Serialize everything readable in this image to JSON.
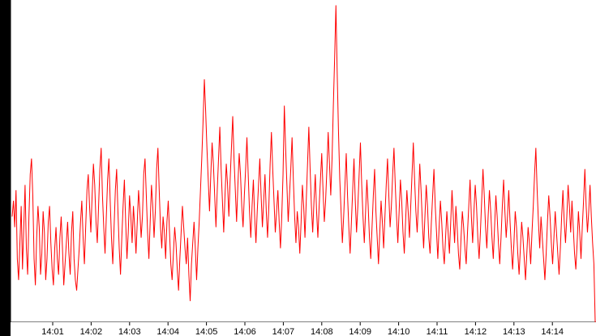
{
  "chart_data": {
    "type": "line",
    "title": "",
    "xlabel": "",
    "ylabel": "",
    "background": "#000000",
    "plot_background": "#ffffff",
    "axis_color": "#000000",
    "line_color": "#ff0000",
    "grid": false,
    "legend": "none",
    "ylim": [
      0,
      61
    ],
    "y_ticks": [
      "0",
      "6",
      "12",
      "18",
      "24",
      "30",
      "36",
      "42",
      "48",
      "54",
      "61"
    ],
    "x_tick_labels": [
      "14:01",
      "14:02",
      "14:03",
      "14:04",
      "14:05",
      "14:06",
      "14:07",
      "14:08",
      "14:09",
      "14:10",
      "14:11",
      "14:12",
      "14:13",
      "14:14"
    ],
    "series": [
      {
        "values": [
          20,
          23,
          18,
          25,
          12,
          8,
          15,
          22,
          10,
          18,
          26,
          14,
          9,
          20,
          28,
          31,
          24,
          12,
          7,
          16,
          22,
          18,
          9,
          13,
          21,
          17,
          8,
          12,
          19,
          22,
          15,
          10,
          7,
          14,
          18,
          12,
          9,
          16,
          20,
          14,
          7,
          11,
          15,
          19,
          13,
          9,
          17,
          21,
          12,
          8,
          6,
          10,
          14,
          19,
          23,
          16,
          11,
          18,
          25,
          28,
          22,
          17,
          24,
          30,
          26,
          19,
          15,
          22,
          29,
          33,
          24,
          18,
          13,
          20,
          27,
          31,
          23,
          16,
          11,
          18,
          25,
          29,
          21,
          14,
          9,
          16,
          22,
          27,
          19,
          12,
          17,
          24,
          20,
          15,
          22,
          18,
          13,
          19,
          25,
          21,
          16,
          20,
          28,
          31,
          24,
          17,
          12,
          19,
          26,
          22,
          16,
          21,
          29,
          33,
          25,
          18,
          14,
          20,
          17,
          12,
          19,
          23,
          17,
          11,
          8,
          13,
          18,
          15,
          10,
          6,
          12,
          17,
          22,
          18,
          14,
          11,
          16,
          9,
          4,
          11,
          15,
          19,
          14,
          8,
          14,
          19,
          25,
          31,
          38,
          46,
          40,
          33,
          27,
          21,
          28,
          34,
          30,
          24,
          18,
          25,
          31,
          37,
          29,
          23,
          17,
          24,
          30,
          26,
          20,
          27,
          33,
          39,
          31,
          25,
          19,
          26,
          32,
          28,
          22,
          18,
          24,
          29,
          35,
          28,
          21,
          16,
          22,
          27,
          20,
          15,
          21,
          26,
          31,
          24,
          18,
          23,
          28,
          21,
          16,
          22,
          30,
          36,
          29,
          23,
          17,
          21,
          25,
          19,
          14,
          20,
          28,
          41,
          33,
          26,
          19,
          24,
          29,
          35,
          27,
          20,
          15,
          21,
          18,
          13,
          19,
          26,
          22,
          16,
          23,
          30,
          37,
          29,
          22,
          17,
          23,
          28,
          21,
          16,
          22,
          27,
          32,
          25,
          19,
          23,
          29,
          36,
          30,
          24,
          31,
          41,
          50,
          60,
          47,
          36,
          27,
          21,
          15,
          20,
          26,
          32,
          24,
          18,
          13,
          19,
          25,
          31,
          23,
          17,
          22,
          28,
          34,
          26,
          20,
          15,
          21,
          27,
          22,
          16,
          12,
          18,
          24,
          29,
          21,
          16,
          11,
          17,
          23,
          19,
          14,
          20,
          26,
          31,
          24,
          18,
          22,
          28,
          33,
          26,
          20,
          15,
          21,
          27,
          23,
          17,
          13,
          19,
          25,
          21,
          16,
          22,
          28,
          34,
          27,
          21,
          17,
          23,
          30,
          25,
          19,
          14,
          20,
          26,
          22,
          16,
          13,
          19,
          24,
          29,
          22,
          17,
          12,
          18,
          23,
          19,
          14,
          11,
          16,
          21,
          17,
          13,
          19,
          25,
          20,
          15,
          22,
          18,
          13,
          10,
          16,
          21,
          18,
          14,
          11,
          17,
          22,
          27,
          20,
          15,
          21,
          26,
          22,
          16,
          12,
          17,
          23,
          29,
          24,
          18,
          14,
          20,
          25,
          21,
          16,
          12,
          18,
          24,
          20,
          15,
          11,
          16,
          22,
          27,
          21,
          16,
          20,
          25,
          19,
          14,
          10,
          15,
          21,
          18,
          13,
          9,
          14,
          19,
          16,
          12,
          8,
          13,
          18,
          15,
          11,
          17,
          22,
          28,
          33,
          25,
          19,
          14,
          20,
          16,
          12,
          8,
          13,
          19,
          24,
          20,
          15,
          11,
          16,
          21,
          17,
          13,
          9,
          14,
          20,
          25,
          19,
          15,
          20,
          26,
          22,
          17,
          23,
          18,
          13,
          10,
          15,
          21,
          17,
          12,
          18,
          23,
          29,
          22,
          17,
          21,
          26,
          20,
          15,
          11,
          0
        ]
      }
    ]
  }
}
